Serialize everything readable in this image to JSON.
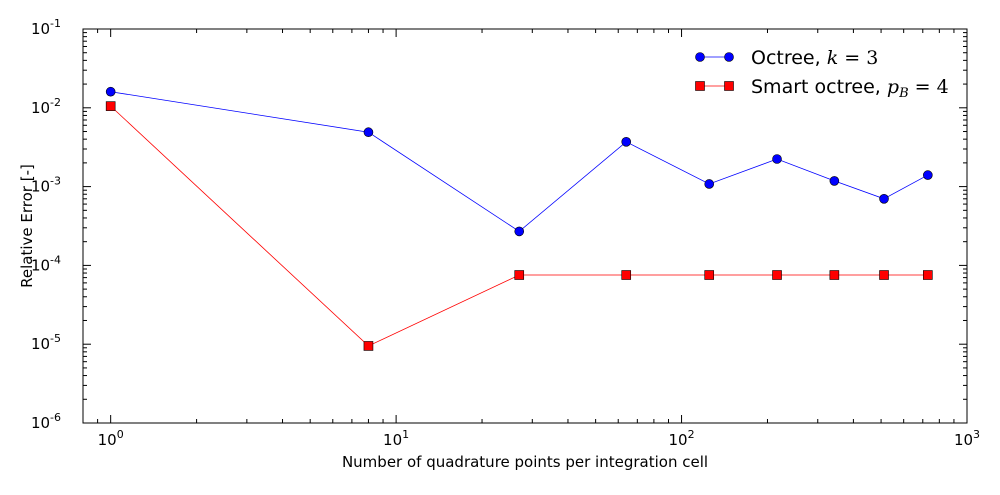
{
  "chart_data": {
    "type": "line",
    "title": "",
    "xlabel": "Number of quadrature points per integration cell",
    "ylabel": "Relative Error [-]",
    "xscale": "log",
    "yscale": "log",
    "xlim": [
      0.8,
      1000
    ],
    "ylim": [
      1e-06,
      0.1
    ],
    "x_tick_exponents": [
      0,
      1,
      2,
      3
    ],
    "y_tick_exponents": [
      -6,
      -5,
      -4,
      -3,
      -2,
      -1
    ],
    "grid": false,
    "legend_placement": "top-right",
    "x": [
      1,
      8,
      27,
      64,
      125,
      216,
      343,
      512,
      729
    ],
    "series": [
      {
        "name": "Octree, k = 3",
        "name_text": "Octree, ",
        "name_math": "k",
        "name_math_sub": "",
        "name_math_rest": " = 3",
        "color": "#0000ff",
        "marker": "circle",
        "values": [
          0.016,
          0.0049,
          0.00027,
          0.0037,
          0.00108,
          0.00224,
          0.00118,
          0.0007,
          0.0014
        ]
      },
      {
        "name": "Smart octree, p_B = 4",
        "name_text": "Smart octree, ",
        "name_math": "p",
        "name_math_sub": "B",
        "name_math_rest": " = 4",
        "color": "#ff0000",
        "marker": "square",
        "values": [
          0.0105,
          9.5e-06,
          7.55e-05,
          7.55e-05,
          7.55e-05,
          7.55e-05,
          7.55e-05,
          7.55e-05,
          7.55e-05
        ]
      }
    ]
  }
}
